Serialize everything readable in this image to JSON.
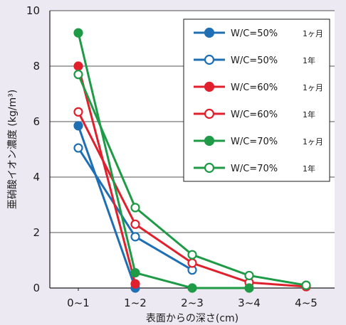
{
  "chart_data": {
    "type": "line",
    "title": "",
    "xlabel": "表面からの深さ(cm)",
    "ylabel": "亜硝酸イオン濃度 (kg/m³)",
    "categories": [
      "0~1",
      "1~2",
      "2~3",
      "3~4",
      "4~5"
    ],
    "ylim": [
      0,
      10
    ],
    "yticks": [
      "0",
      "2",
      "4",
      "6",
      "8",
      "10"
    ],
    "grid": "horizontal",
    "legend_position": "top-right",
    "series": [
      {
        "name": "W/C=50%",
        "period": "1ヶ月",
        "color": "#1f6fb5",
        "marker": "filled",
        "values": [
          5.85,
          0.0,
          null,
          null,
          null
        ]
      },
      {
        "name": "W/C=50%",
        "period": "1年",
        "color": "#1f6fb5",
        "marker": "open",
        "values": [
          5.05,
          1.85,
          0.65,
          null,
          null
        ]
      },
      {
        "name": "W/C=60%",
        "period": "1ヶ月",
        "color": "#e0212d",
        "marker": "filled",
        "values": [
          8.0,
          0.15,
          null,
          null,
          null
        ]
      },
      {
        "name": "W/C=60%",
        "period": "1年",
        "color": "#e0212d",
        "marker": "open",
        "values": [
          6.35,
          2.3,
          0.9,
          0.2,
          0.05
        ]
      },
      {
        "name": "W/C=70%",
        "period": "1ヶ月",
        "color": "#1f9a46",
        "marker": "filled",
        "values": [
          9.2,
          0.55,
          0.0,
          0.0,
          null
        ]
      },
      {
        "name": "W/C=70%",
        "period": "1年",
        "color": "#1f9a46",
        "marker": "open",
        "values": [
          7.7,
          2.9,
          1.2,
          0.45,
          0.1
        ]
      }
    ]
  }
}
